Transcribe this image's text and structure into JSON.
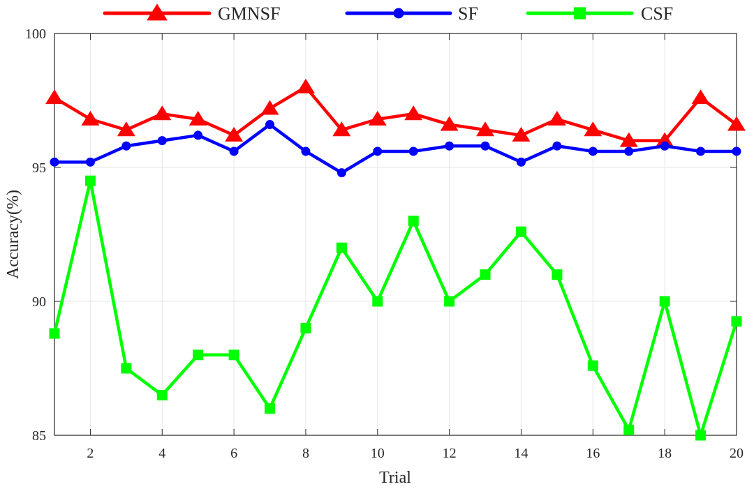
{
  "chart_data": {
    "type": "line",
    "title": "",
    "xlabel": "Trial",
    "ylabel": "Accuracy(%)",
    "xlim": [
      1,
      20
    ],
    "ylim": [
      85,
      100
    ],
    "x": [
      1,
      2,
      3,
      4,
      5,
      6,
      7,
      8,
      9,
      10,
      11,
      12,
      13,
      14,
      15,
      16,
      17,
      18,
      19,
      20
    ],
    "xticks": [
      "2",
      "4",
      "6",
      "8",
      "10",
      "12",
      "14",
      "16",
      "18",
      "20"
    ],
    "yticks": [
      "85",
      "90",
      "95",
      "100"
    ],
    "grid": true,
    "legend_position": "top",
    "series": [
      {
        "name": "GMNSF",
        "color": "#ff0000",
        "marker": "triangle",
        "values": [
          97.6,
          96.8,
          96.4,
          97.0,
          96.8,
          96.2,
          97.2,
          98.0,
          96.4,
          96.8,
          97.0,
          96.6,
          96.4,
          96.2,
          96.8,
          96.4,
          96.0,
          96.0,
          97.6,
          96.6
        ]
      },
      {
        "name": "SF",
        "color": "#0000ff",
        "marker": "circle",
        "values": [
          95.2,
          95.2,
          95.8,
          96.0,
          96.2,
          95.6,
          96.6,
          95.6,
          94.8,
          95.6,
          95.6,
          95.8,
          95.8,
          95.2,
          95.8,
          95.6,
          95.6,
          95.8,
          95.6,
          95.6
        ]
      },
      {
        "name": "CSF",
        "color": "#00ff00",
        "marker": "square",
        "values": [
          88.8,
          94.5,
          87.5,
          86.5,
          88.0,
          88.0,
          86.0,
          89.0,
          92.0,
          90.0,
          93.0,
          90.0,
          91.0,
          92.6,
          91.0,
          87.6,
          85.2,
          90.0,
          85.0,
          89.25
        ]
      }
    ]
  }
}
